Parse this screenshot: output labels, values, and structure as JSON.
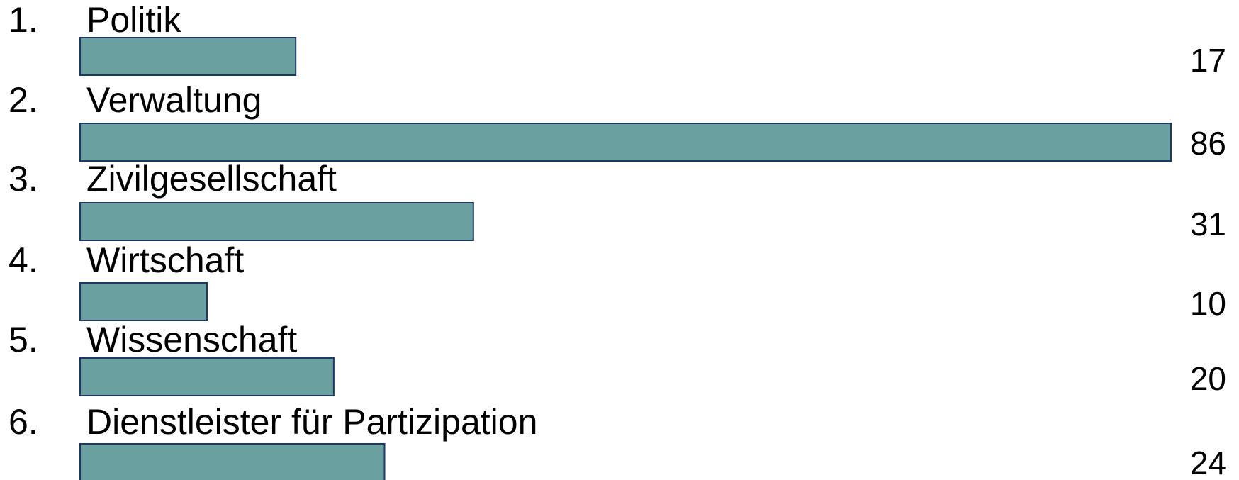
{
  "chart_data": {
    "type": "bar",
    "orientation": "horizontal",
    "title": "",
    "xlabel": "",
    "ylabel": "",
    "grid": false,
    "legend": "none",
    "xlim": [
      0,
      86
    ],
    "bar_color": "#6aa0a0",
    "bar_border_color": "#1f3864",
    "items": [
      {
        "number": "1.",
        "label": "Politik",
        "value": 17
      },
      {
        "number": "2.",
        "label": "Verwaltung",
        "value": 86
      },
      {
        "number": "3.",
        "label": "Zivilgesellschaft",
        "value": 31
      },
      {
        "number": "4.",
        "label": "Wirtschaft",
        "value": 10
      },
      {
        "number": "5.",
        "label": "Wissenschaft",
        "value": 20
      },
      {
        "number": "6.",
        "label": "Dienstleister für Partizipation",
        "value": 24
      }
    ]
  }
}
